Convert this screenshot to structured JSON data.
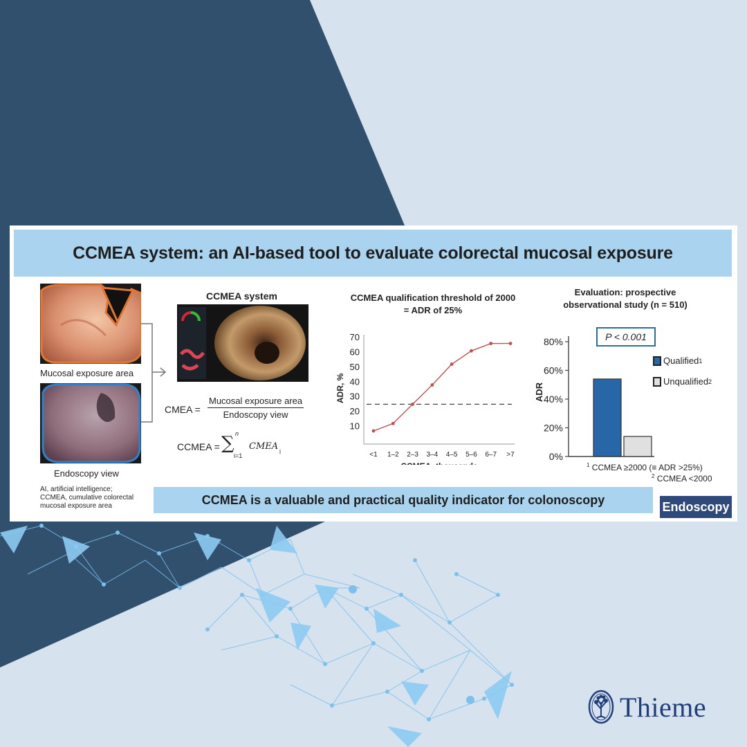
{
  "title": "CCMEA system: an AI-based tool to evaluate colorectal mucosal exposure",
  "left_panel": {
    "mucosal_label": "Mucosal exposure area",
    "endoscopy_label": "Endoscopy view",
    "footnote_lines": [
      "AI, artificial intelligence;",
      "CCMEA, cumulative colorectal",
      "mucosal exposure area"
    ]
  },
  "middle_panel": {
    "heading": "CCMEA system",
    "cmea_lhs": "CMEA =",
    "cmea_numerator": "Mucosal exposure area",
    "cmea_denominator": "Endoscopy view",
    "ccmea_lhs": "CCMEA =",
    "sum_upper": "n",
    "sum_lower": "i=1",
    "sum_term": "CMEA",
    "sum_subscript": "i"
  },
  "threshold_chart": {
    "title_line1": "CCMEA qualification threshold of 2000",
    "title_line2": "= ADR of 25%",
    "chart_data": {
      "type": "line",
      "categories": [
        "<1",
        "1–2",
        "2–3",
        "3–4",
        "4–5",
        "5–6",
        "6–7",
        ">7"
      ],
      "values": [
        7,
        12,
        25,
        38,
        52,
        61,
        66,
        66
      ],
      "ylim": [
        0,
        70
      ],
      "yticks": [
        10,
        20,
        30,
        40,
        50,
        60,
        70
      ],
      "threshold": 25,
      "xlabel": "CCMEA, thousands",
      "ylabel": "ADR, %",
      "grid": false
    },
    "line_color": "#c0504d"
  },
  "evaluation_chart": {
    "title_line1": "Evaluation: prospective",
    "title_line2": "observational study (n = 510)",
    "p_value": "P < 0.001",
    "chart_data": {
      "type": "bar",
      "categories": [
        "Qualified",
        "Unqualified"
      ],
      "values": [
        54,
        14
      ],
      "ylim": [
        0,
        80
      ],
      "yticks": [
        "0%",
        "20%",
        "40%",
        "60%",
        "80%"
      ],
      "ylabel": "ADR",
      "legend": [
        {
          "label": "Qualified",
          "sup": "1",
          "color": "#2767a8"
        },
        {
          "label": "Unqualified",
          "sup": "2",
          "color": "#e0e0e0"
        }
      ]
    },
    "footnote1_sup": "1",
    "footnote1": "CCMEA ≥2000 (≡ ADR >25%)",
    "footnote2_sup": "2",
    "footnote2": "CCMEA <2000"
  },
  "conclusion": "CCMEA is a valuable and practical quality indicator for colonoscopy",
  "journal": "Endoscopy",
  "publisher": "Thieme",
  "colors": {
    "dark_navy": "#30506e",
    "light_bg": "#d6e2ee",
    "title_bar": "#a9d3ee",
    "badge": "#2f4a7a",
    "network": "#6fb4e6"
  }
}
